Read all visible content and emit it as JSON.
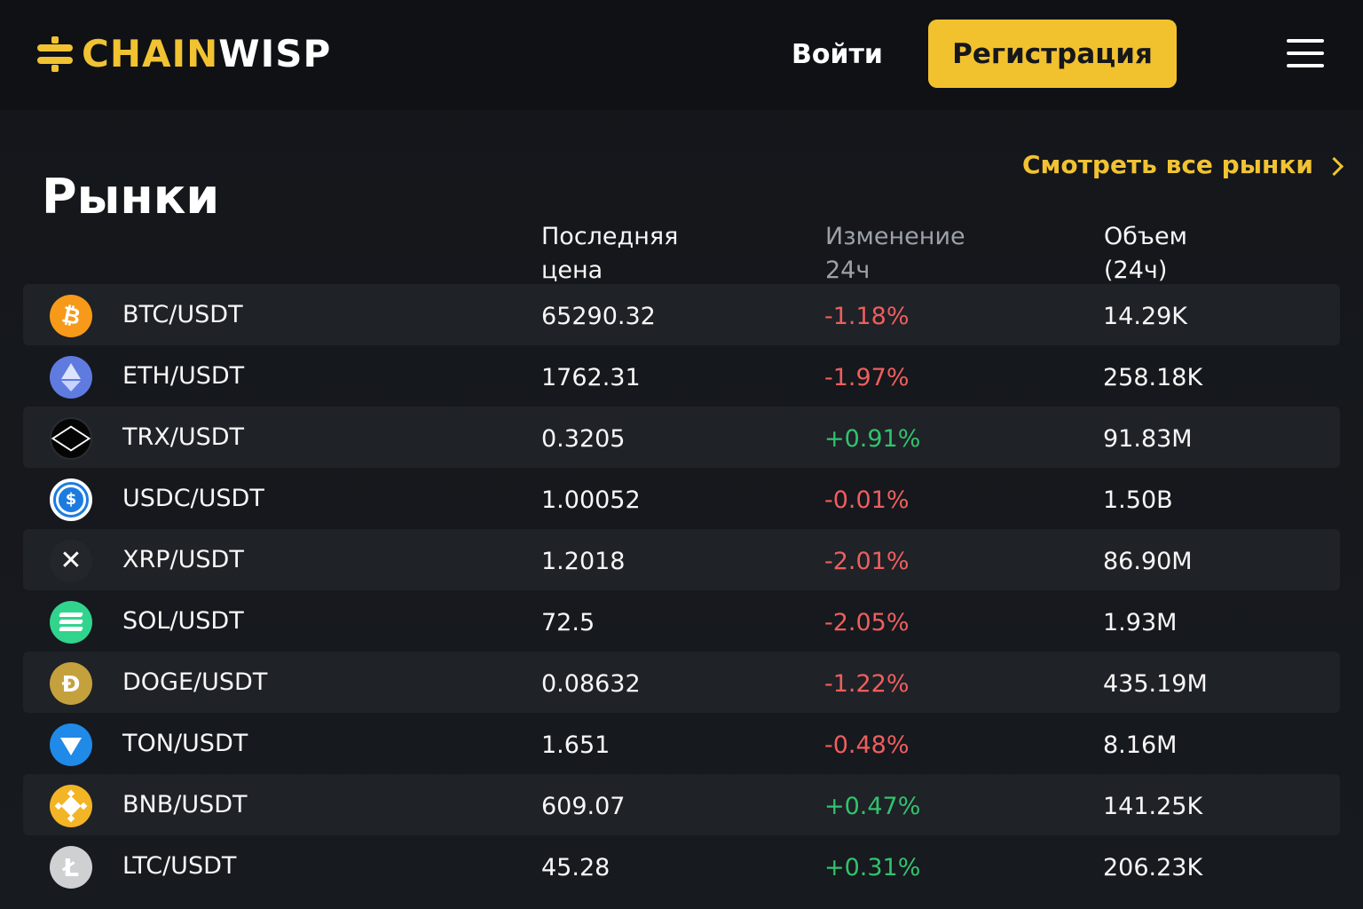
{
  "header": {
    "logo_main": "CHAIN",
    "logo_accent": "WISP",
    "login_label": "Войти",
    "register_label": "Регистрация"
  },
  "section": {
    "title": "Рынки",
    "view_all_label": "Смотреть все рынки"
  },
  "table": {
    "headers": {
      "price_line1": "Последняя",
      "price_line2": "цена",
      "change_line1": "Изменение",
      "change_line2": "24ч",
      "volume_line1": "Объем",
      "volume_line2": "(24ч)"
    },
    "rows": [
      {
        "icon": "bitcoin-icon",
        "pair": "BTC/USDT",
        "price": "65290.32",
        "change": "-1.18%",
        "volume": "14.29K"
      },
      {
        "icon": "ethereum-icon",
        "pair": "ETH/USDT",
        "price": "1762.31",
        "change": "-1.97%",
        "volume": "258.18K"
      },
      {
        "icon": "tron-icon",
        "pair": "TRX/USDT",
        "price": "0.3205",
        "change": "+0.91%",
        "volume": "91.83M"
      },
      {
        "icon": "usd-coin-icon",
        "pair": "USDC/USDT",
        "price": "1.00052",
        "change": "-0.01%",
        "volume": "1.50B"
      },
      {
        "icon": "xrp-icon",
        "pair": "XRP/USDT",
        "price": "1.2018",
        "change": "-2.01%",
        "volume": "86.90M"
      },
      {
        "icon": "solana-icon",
        "pair": "SOL/USDT",
        "price": "72.5",
        "change": "-2.05%",
        "volume": "1.93M"
      },
      {
        "icon": "dogecoin-icon",
        "pair": "DOGE/USDT",
        "price": "0.08632",
        "change": "-1.22%",
        "volume": "435.19M"
      },
      {
        "icon": "toncoin-icon",
        "pair": "TON/USDT",
        "price": "1.651",
        "change": "-0.48%",
        "volume": "8.16M"
      },
      {
        "icon": "bnb-icon",
        "pair": "BNB/USDT",
        "price": "609.07",
        "change": "+0.47%",
        "volume": "141.25K"
      },
      {
        "icon": "litecoin-icon",
        "pair": "LTC/USDT",
        "price": "45.28",
        "change": "+0.31%",
        "volume": "206.23K"
      }
    ]
  },
  "colors": {
    "background": "#15171b",
    "header_background": "#0f1115",
    "accent_yellow": "#f1c232",
    "row_alt_background": "#1f2227",
    "negative_change": "#ef5e5e",
    "positive_change": "#31c36d"
  },
  "icons": {
    "logo_mark": "chainwisp-logo-icon",
    "menu": "hamburger-menu-icon",
    "view_all": "chevron-right-icon"
  }
}
